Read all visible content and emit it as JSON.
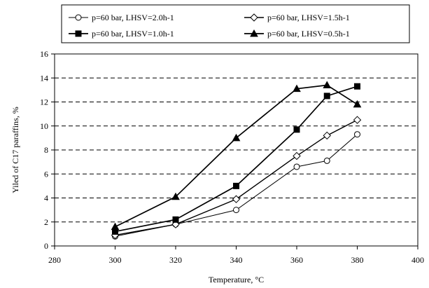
{
  "chart_data": {
    "type": "line",
    "xlabel": "Temperature, °C",
    "ylabel": "Yiled of C17 paraffins, %",
    "xlim": [
      280,
      400
    ],
    "ylim": [
      0,
      16
    ],
    "xticks": [
      280,
      300,
      320,
      340,
      360,
      380,
      400
    ],
    "yticks": [
      0,
      2,
      4,
      6,
      8,
      10,
      12,
      14,
      16
    ],
    "grid": "horizontal-dashed",
    "legend_position": "top",
    "x": [
      300,
      320,
      340,
      360,
      370,
      380
    ],
    "series": [
      {
        "name": "p=60 bar, LHSV=2.0h-1",
        "marker": "circle-open",
        "values": [
          0.8,
          1.8,
          3.0,
          6.6,
          7.1,
          9.3
        ]
      },
      {
        "name": "p=60 bar, LHSV=1.5h-1",
        "marker": "diamond-open",
        "values": [
          0.9,
          1.8,
          3.9,
          7.5,
          9.2,
          10.5
        ]
      },
      {
        "name": "p=60 bar, LHSV=1.0h-1",
        "marker": "square-filled",
        "values": [
          1.2,
          2.2,
          5.0,
          9.7,
          12.5,
          13.3
        ]
      },
      {
        "name": "p=60 bar, LHSV=0.5h-1",
        "marker": "triangle-filled",
        "values": [
          1.6,
          4.1,
          9.0,
          13.1,
          13.4,
          11.8
        ]
      }
    ]
  }
}
